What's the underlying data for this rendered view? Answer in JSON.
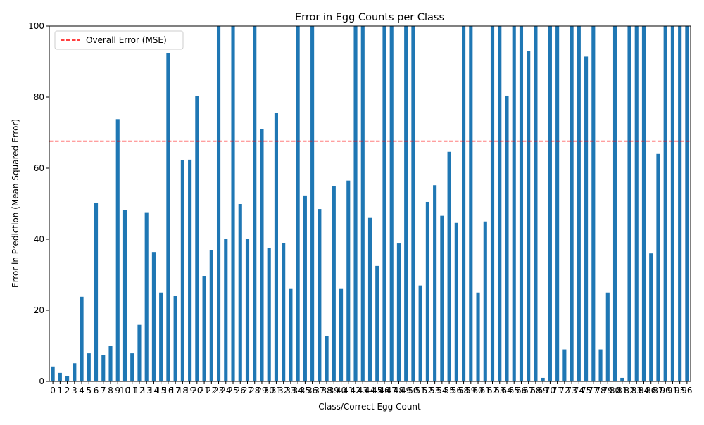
{
  "chart_data": {
    "type": "bar",
    "title": "Error in Egg Counts per Class",
    "xlabel": "Class/Correct Egg Count",
    "ylabel": "Error in Prediction (Mean Squared Error)",
    "ylim": [
      0,
      100
    ],
    "yticks": [
      0,
      20,
      40,
      60,
      80,
      100
    ],
    "grid": false,
    "legend_placement": "top-left",
    "bar_color": "#1f77b4",
    "reference_line": {
      "name": "Overall Error (MSE)",
      "value": 67.6,
      "color": "#ff0000",
      "style": "dashed"
    },
    "categories": [
      "0",
      "1",
      "2",
      "3",
      "4",
      "5",
      "6",
      "7",
      "8",
      "9",
      "10",
      "11",
      "12",
      "13",
      "14",
      "15",
      "16",
      "17",
      "18",
      "19",
      "20",
      "21",
      "22",
      "23",
      "24",
      "25",
      "26",
      "27",
      "28",
      "29",
      "30",
      "31",
      "32",
      "33",
      "34",
      "35",
      "36",
      "37",
      "38",
      "39",
      "40",
      "41",
      "42",
      "43",
      "44",
      "45",
      "46",
      "47",
      "48",
      "49",
      "50",
      "51",
      "52",
      "53",
      "54",
      "55",
      "56",
      "58",
      "59",
      "60",
      "61",
      "62",
      "63",
      "64",
      "65",
      "66",
      "67",
      "68",
      "69",
      "70",
      "71",
      "72",
      "73",
      "74",
      "75",
      "77",
      "78",
      "79",
      "80",
      "81",
      "82",
      "83",
      "84",
      "86",
      "87",
      "90",
      "91",
      "95",
      "96"
    ],
    "values": [
      4.2,
      2.4,
      1.5,
      5.1,
      23.8,
      7.9,
      50.3,
      7.5,
      9.9,
      73.8,
      48.3,
      7.9,
      15.9,
      47.6,
      36.4,
      25.0,
      92.4,
      24.0,
      62.2,
      62.4,
      80.3,
      29.7,
      37.0,
      100,
      40.0,
      100,
      49.9,
      40.0,
      100,
      71.0,
      37.5,
      75.6,
      38.9,
      26.0,
      100,
      52.3,
      100,
      48.5,
      12.7,
      55.0,
      26.0,
      56.5,
      100,
      100,
      46.0,
      32.5,
      100,
      100,
      38.8,
      100,
      100,
      27.0,
      50.5,
      55.2,
      46.6,
      64.6,
      44.6,
      100,
      100,
      25.0,
      45.0,
      100,
      100,
      80.4,
      100,
      100,
      93.0,
      100,
      1.0,
      100,
      100,
      9.0,
      100,
      100,
      91.4,
      100,
      9.0,
      25.0,
      100,
      1.0,
      100,
      100,
      100,
      36.0,
      64.0,
      100,
      100,
      100,
      100
    ]
  }
}
